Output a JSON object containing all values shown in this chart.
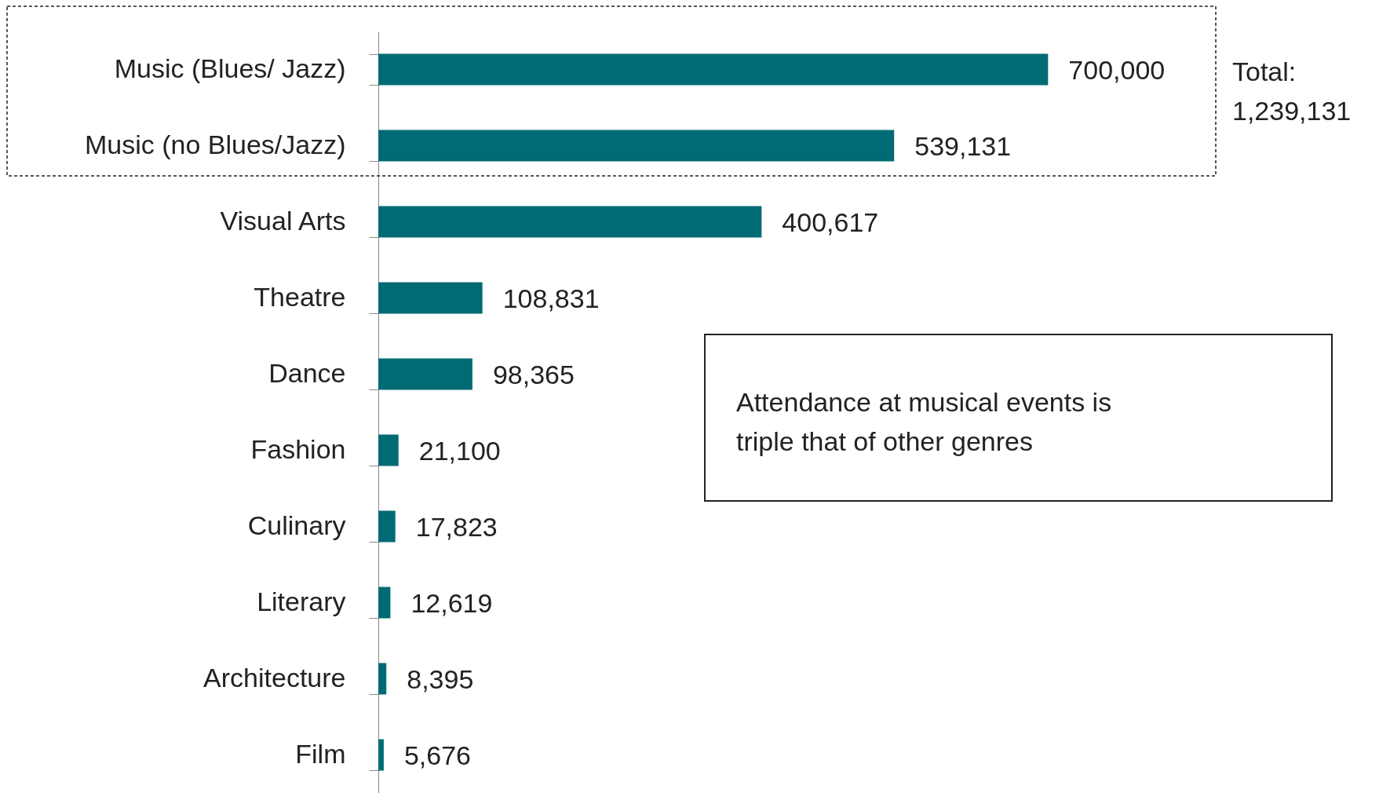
{
  "chart_data": {
    "type": "bar",
    "orientation": "horizontal",
    "categories": [
      "Music (Blues/ Jazz)",
      "Music (no Blues/Jazz)",
      "Visual Arts",
      "Theatre",
      "Dance",
      "Fashion",
      "Culinary",
      "Literary",
      "Architecture",
      "Film"
    ],
    "values": [
      700000,
      539131,
      400617,
      108831,
      98365,
      21100,
      17823,
      12619,
      8395,
      5676
    ],
    "color": "#006b74",
    "value_labels": [
      "700,000",
      "539,131",
      "400,617",
      "108,831",
      "98,365",
      "21,100",
      "17,823",
      "12,619",
      "8,395",
      "5,676"
    ],
    "annotations": [
      "Total:\n1,239,131",
      "Attendance at musical events is\ntriple that of other genres"
    ]
  }
}
